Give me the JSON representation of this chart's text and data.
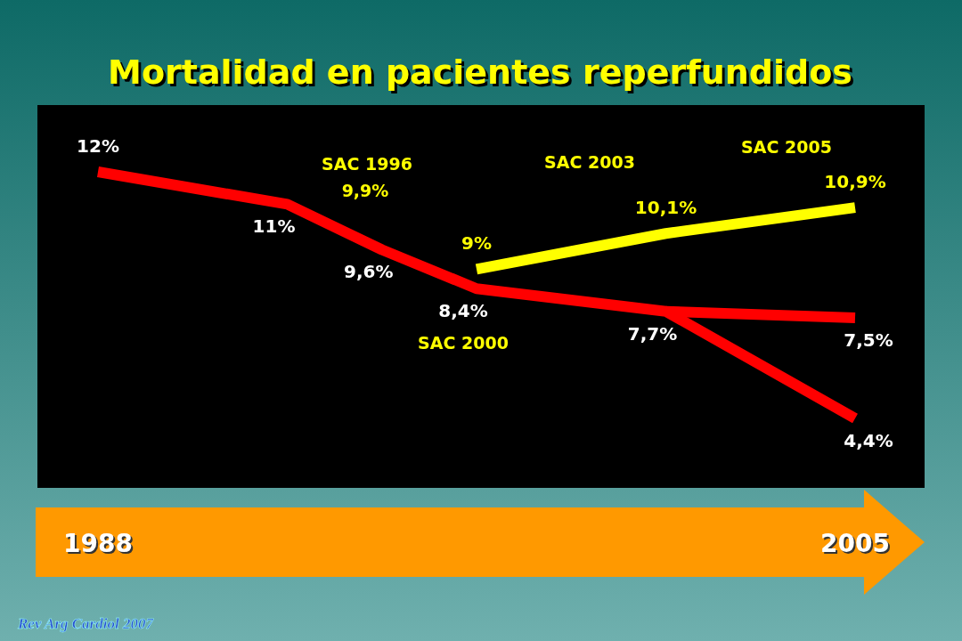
{
  "chart_data": {
    "type": "line",
    "title": "Mortalidad en pacientes reperfundidos",
    "categories": [
      "1988",
      null,
      null,
      null,
      null,
      null,
      null,
      null,
      "2005"
    ],
    "series": [
      {
        "color": "#ff0000",
        "values": [
          12,
          null,
          11,
          9.6,
          8.4,
          null,
          7.7,
          null,
          4.4
        ],
        "value_labels": [
          "12%",
          null,
          "11%",
          "9,6%",
          "8,4%",
          null,
          "7,7%",
          null,
          "4,4%"
        ]
      },
      {
        "color": "#ff0000",
        "values": [
          null,
          null,
          null,
          null,
          null,
          null,
          7.7,
          null,
          7.5
        ],
        "value_labels": [
          null,
          null,
          null,
          null,
          null,
          null,
          null,
          null,
          "7,5%"
        ]
      },
      {
        "color": "#ffff00",
        "values": [
          null,
          null,
          null,
          null,
          9,
          null,
          10.1,
          null,
          10.9
        ],
        "value_labels": [
          null,
          null,
          null,
          null,
          "9%",
          null,
          "10,1%",
          null,
          "10,9%"
        ]
      }
    ],
    "marker": "none",
    "annotations": [
      "SAC 1996",
      "9,9%",
      "SAC 2000",
      "SAC 2003",
      "SAC 2005",
      "Rev Arg Cardiol 2007"
    ]
  }
}
